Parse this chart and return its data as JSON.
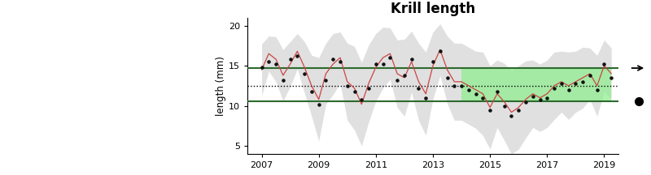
{
  "title": "Krill length",
  "ylabel": "length (mm)",
  "ylim": [
    4,
    21
  ],
  "yticks": [
    5,
    10,
    15,
    20
  ],
  "xlim": [
    2006.5,
    2019.5
  ],
  "xticks": [
    2007,
    2009,
    2011,
    2013,
    2015,
    2017,
    2019
  ],
  "hline_upper": 14.7,
  "hline_lower": 10.6,
  "hline_dotted": 12.5,
  "green_band_start_x": 2014.0,
  "green_band_color": "#90EE90",
  "green_band_alpha": 0.75,
  "line_color": "#cc4444",
  "dot_color": "#111111",
  "shade_color": "#c8c8c8",
  "shade_alpha": 0.55,
  "hline_color": "#2d6a2d",
  "title_fontsize": 12,
  "photo_bg_color": "#d0d8e0",
  "x_years": [
    2007.0,
    2007.25,
    2007.5,
    2007.75,
    2008.0,
    2008.25,
    2008.5,
    2008.75,
    2009.0,
    2009.25,
    2009.5,
    2009.75,
    2010.0,
    2010.25,
    2010.5,
    2010.75,
    2011.0,
    2011.25,
    2011.5,
    2011.75,
    2012.0,
    2012.25,
    2012.5,
    2012.75,
    2013.0,
    2013.25,
    2013.5,
    2013.75,
    2014.0,
    2014.25,
    2014.5,
    2014.75,
    2015.0,
    2015.25,
    2015.5,
    2015.75,
    2016.0,
    2016.25,
    2016.5,
    2016.75,
    2017.0,
    2017.25,
    2017.5,
    2017.75,
    2018.0,
    2018.25,
    2018.5,
    2018.75,
    2019.0,
    2019.25
  ],
  "mean_vals": [
    14.5,
    16.5,
    15.8,
    13.8,
    15.2,
    16.8,
    14.8,
    12.5,
    10.8,
    14.0,
    15.2,
    16.0,
    13.0,
    12.2,
    10.2,
    12.8,
    14.8,
    16.0,
    16.5,
    14.0,
    13.5,
    15.5,
    13.0,
    11.5,
    15.0,
    17.0,
    14.5,
    13.0,
    13.0,
    12.5,
    12.0,
    11.5,
    9.8,
    11.5,
    10.5,
    9.2,
    9.8,
    10.8,
    11.5,
    11.0,
    11.5,
    12.5,
    13.0,
    12.5,
    13.0,
    13.5,
    14.0,
    12.5,
    15.0,
    14.0
  ],
  "upper_offsets": [
    3.2,
    2.2,
    2.8,
    3.2,
    2.8,
    2.2,
    3.2,
    3.8,
    5.2,
    3.8,
    3.8,
    3.2,
    4.8,
    5.2,
    5.2,
    4.8,
    4.2,
    3.8,
    3.2,
    4.2,
    4.8,
    3.8,
    4.8,
    5.2,
    4.2,
    3.2,
    4.2,
    4.8,
    4.8,
    4.8,
    4.8,
    5.2,
    5.2,
    4.2,
    4.8,
    5.2,
    5.2,
    4.8,
    4.2,
    4.2,
    4.2,
    4.2,
    3.8,
    4.2,
    3.8,
    3.8,
    3.2,
    3.8,
    3.2,
    3.2
  ],
  "lower_offsets": [
    3.2,
    2.2,
    2.8,
    3.2,
    2.8,
    2.2,
    3.2,
    3.8,
    5.2,
    3.8,
    3.8,
    3.2,
    4.8,
    5.2,
    5.2,
    4.8,
    4.2,
    3.8,
    3.2,
    4.2,
    4.8,
    3.8,
    4.8,
    5.2,
    4.2,
    3.2,
    4.2,
    4.8,
    4.8,
    4.8,
    4.8,
    5.2,
    5.2,
    4.2,
    4.8,
    5.2,
    5.2,
    4.8,
    4.2,
    4.2,
    4.2,
    4.2,
    3.8,
    4.2,
    3.8,
    3.8,
    3.2,
    3.8,
    3.2,
    3.2
  ],
  "dot_vals": [
    14.8,
    15.5,
    15.2,
    13.2,
    15.8,
    16.2,
    14.0,
    11.8,
    10.2,
    13.2,
    15.8,
    15.5,
    12.5,
    11.8,
    10.8,
    12.2,
    15.2,
    15.2,
    16.0,
    13.2,
    13.8,
    15.8,
    12.2,
    11.0,
    15.5,
    16.8,
    13.5,
    12.5,
    12.5,
    12.0,
    11.5,
    11.0,
    9.5,
    11.8,
    10.0,
    8.8,
    9.5,
    10.5,
    11.2,
    10.8,
    11.0,
    12.2,
    12.8,
    12.0,
    12.8,
    13.0,
    13.8,
    12.0,
    15.2,
    13.5
  ]
}
